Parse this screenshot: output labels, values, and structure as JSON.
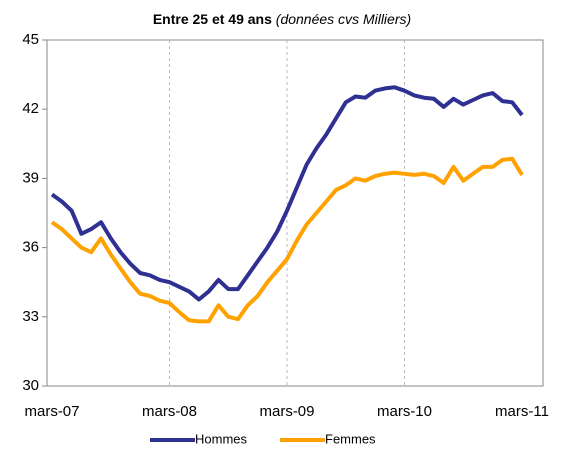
{
  "chart_data": {
    "type": "line",
    "title": "Entre 25 et 49 ans",
    "subtitle": "(données cvs Milliers)",
    "categories": [
      "mars-07",
      null,
      null,
      null,
      null,
      null,
      null,
      null,
      null,
      null,
      null,
      null,
      "mars-08",
      null,
      null,
      null,
      null,
      null,
      null,
      null,
      null,
      null,
      null,
      null,
      "mars-09",
      null,
      null,
      null,
      null,
      null,
      null,
      null,
      null,
      null,
      null,
      null,
      "mars-10",
      null,
      null,
      null,
      null,
      null,
      null,
      null,
      null,
      null,
      null,
      null,
      "mars-11"
    ],
    "series": [
      {
        "name": "Hommes",
        "color": "#2e3192",
        "values": [
          38.3,
          38.0,
          37.6,
          36.6,
          36.8,
          37.1,
          36.4,
          35.8,
          35.3,
          34.9,
          34.8,
          34.6,
          34.5,
          34.3,
          34.1,
          33.75,
          34.1,
          34.6,
          34.2,
          34.2,
          34.8,
          35.4,
          36.0,
          36.7,
          37.6,
          38.6,
          39.6,
          40.3,
          40.9,
          41.6,
          42.3,
          42.55,
          42.5,
          42.8,
          42.9,
          42.95,
          42.8,
          42.6,
          42.5,
          42.45,
          42.1,
          42.45,
          42.2,
          42.4,
          42.6,
          42.7,
          42.35,
          42.3,
          41.75
        ]
      },
      {
        "name": "Femmes",
        "color": "#ffa200",
        "values": [
          37.1,
          36.8,
          36.4,
          36.0,
          35.8,
          36.4,
          35.7,
          35.1,
          34.5,
          34.0,
          33.9,
          33.7,
          33.6,
          33.2,
          32.85,
          32.8,
          32.8,
          33.5,
          33.0,
          32.9,
          33.5,
          33.9,
          34.5,
          35.0,
          35.5,
          36.3,
          37.0,
          37.5,
          38.0,
          38.5,
          38.7,
          39.0,
          38.9,
          39.1,
          39.2,
          39.25,
          39.2,
          39.15,
          39.2,
          39.1,
          38.8,
          39.5,
          38.9,
          39.2,
          39.5,
          39.5,
          39.8,
          39.85,
          39.15
        ]
      }
    ],
    "ylim": [
      30,
      45
    ],
    "yticks": [
      30,
      33,
      36,
      39,
      42,
      45
    ],
    "xgrid": true,
    "legend": "bottom"
  }
}
